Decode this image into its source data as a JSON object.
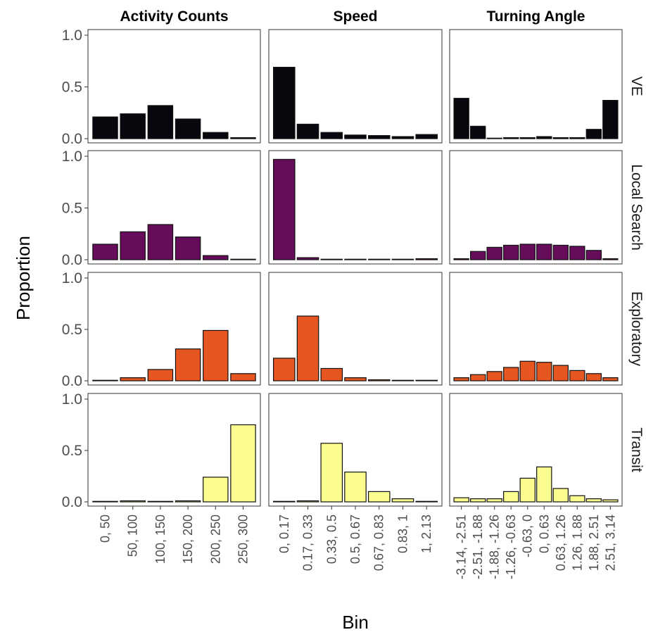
{
  "chart_data": {
    "type": "bar",
    "layout": "facet_grid",
    "xlabel": "Bin",
    "ylabel": "Proportion",
    "ylim": [
      0,
      1
    ],
    "yticks": [
      "0.0",
      "0.5",
      "1.0"
    ],
    "grid": false,
    "columns": [
      {
        "title": "Activity Counts",
        "categories": [
          "0, 50",
          "50, 100",
          "100, 150",
          "150, 200",
          "200, 250",
          "250, 300"
        ]
      },
      {
        "title": "Speed",
        "categories": [
          "0, 0.17",
          "0.17, 0.33",
          "0.33, 0.5",
          "0.5, 0.67",
          "0.67, 0.83",
          "0.83, 1",
          "1, 2.13"
        ]
      },
      {
        "title": "Turning Angle",
        "categories": [
          "-3.14, -2.51",
          "-2.51, -1.88",
          "-1.88, -1.26",
          "-1.26, -0.63",
          "-0.63, 0",
          "0, 0.63",
          "0.63, 1.26",
          "1.26, 1.88",
          "1.88, 2.51",
          "2.51, 3.14"
        ]
      }
    ],
    "rows": [
      {
        "name": "VE",
        "color": "#08070e",
        "values": [
          [
            0.21,
            0.24,
            0.32,
            0.19,
            0.06,
            0.01
          ],
          [
            0.69,
            0.14,
            0.06,
            0.035,
            0.03,
            0.02,
            0.04
          ],
          [
            0.39,
            0.12,
            0.005,
            0.01,
            0.01,
            0.02,
            0.01,
            0.01,
            0.09,
            0.37
          ]
        ]
      },
      {
        "name": "Local Search",
        "color": "#660c5b",
        "values": [
          [
            0.15,
            0.27,
            0.34,
            0.22,
            0.04,
            0.005
          ],
          [
            0.97,
            0.02,
            0.005,
            0.005,
            0.005,
            0.005,
            0.01
          ],
          [
            0.01,
            0.08,
            0.12,
            0.14,
            0.15,
            0.15,
            0.14,
            0.13,
            0.09,
            0.01
          ]
        ]
      },
      {
        "name": "Exploratory",
        "color": "#e55620",
        "values": [
          [
            0.005,
            0.03,
            0.11,
            0.31,
            0.49,
            0.07
          ],
          [
            0.22,
            0.63,
            0.12,
            0.03,
            0.01,
            0.005,
            0.005
          ],
          [
            0.03,
            0.06,
            0.09,
            0.13,
            0.19,
            0.18,
            0.15,
            0.1,
            0.07,
            0.03
          ]
        ]
      },
      {
        "name": "Transit",
        "color": "#fbfe8f",
        "values": [
          [
            0.005,
            0.01,
            0.005,
            0.01,
            0.24,
            0.75
          ],
          [
            0.005,
            0.01,
            0.57,
            0.29,
            0.1,
            0.03,
            0.005
          ],
          [
            0.04,
            0.03,
            0.03,
            0.1,
            0.23,
            0.34,
            0.13,
            0.06,
            0.03,
            0.02
          ]
        ]
      }
    ]
  }
}
